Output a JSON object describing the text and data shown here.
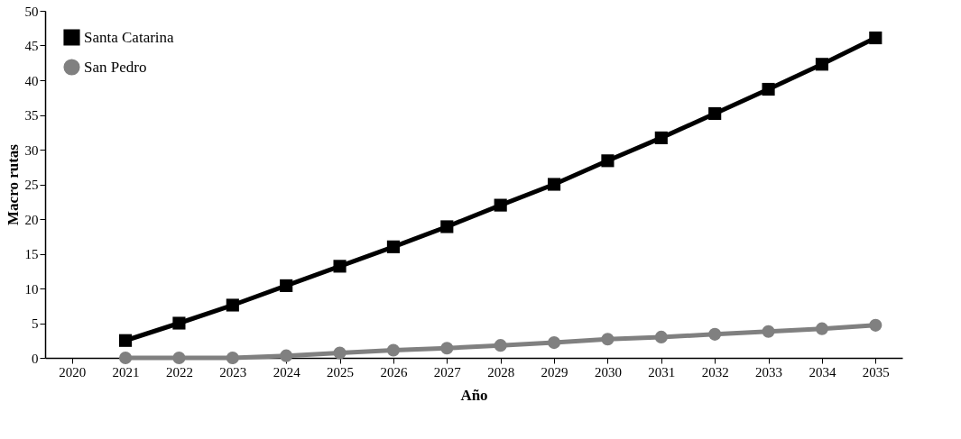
{
  "chart_data": {
    "type": "line",
    "xlabel": "Año",
    "ylabel": "Macro rutas",
    "categories": [
      "2020",
      "2021",
      "2022",
      "2023",
      "2024",
      "2025",
      "2026",
      "2027",
      "2028",
      "2029",
      "2030",
      "2031",
      "2032",
      "2033",
      "2034",
      "2035"
    ],
    "series": [
      {
        "name": "Santa Catarina",
        "color": "#000000",
        "marker": "square",
        "values": [
          null,
          2.5,
          5.0,
          7.6,
          10.4,
          13.2,
          16.0,
          18.9,
          22.0,
          25.0,
          28.4,
          31.7,
          35.2,
          38.7,
          42.3,
          46.1
        ]
      },
      {
        "name": "San Pedro",
        "color": "#808080",
        "marker": "circle",
        "values": [
          null,
          0,
          0,
          0,
          0.3,
          0.7,
          1.1,
          1.4,
          1.8,
          2.2,
          2.7,
          3.0,
          3.4,
          3.8,
          4.2,
          4.7
        ]
      }
    ],
    "ylim": [
      0,
      50
    ],
    "yticks": [
      0,
      5,
      10,
      15,
      20,
      25,
      30,
      35,
      40,
      45,
      50
    ],
    "grid": false,
    "legend": "top left",
    "line_style": "solid"
  }
}
